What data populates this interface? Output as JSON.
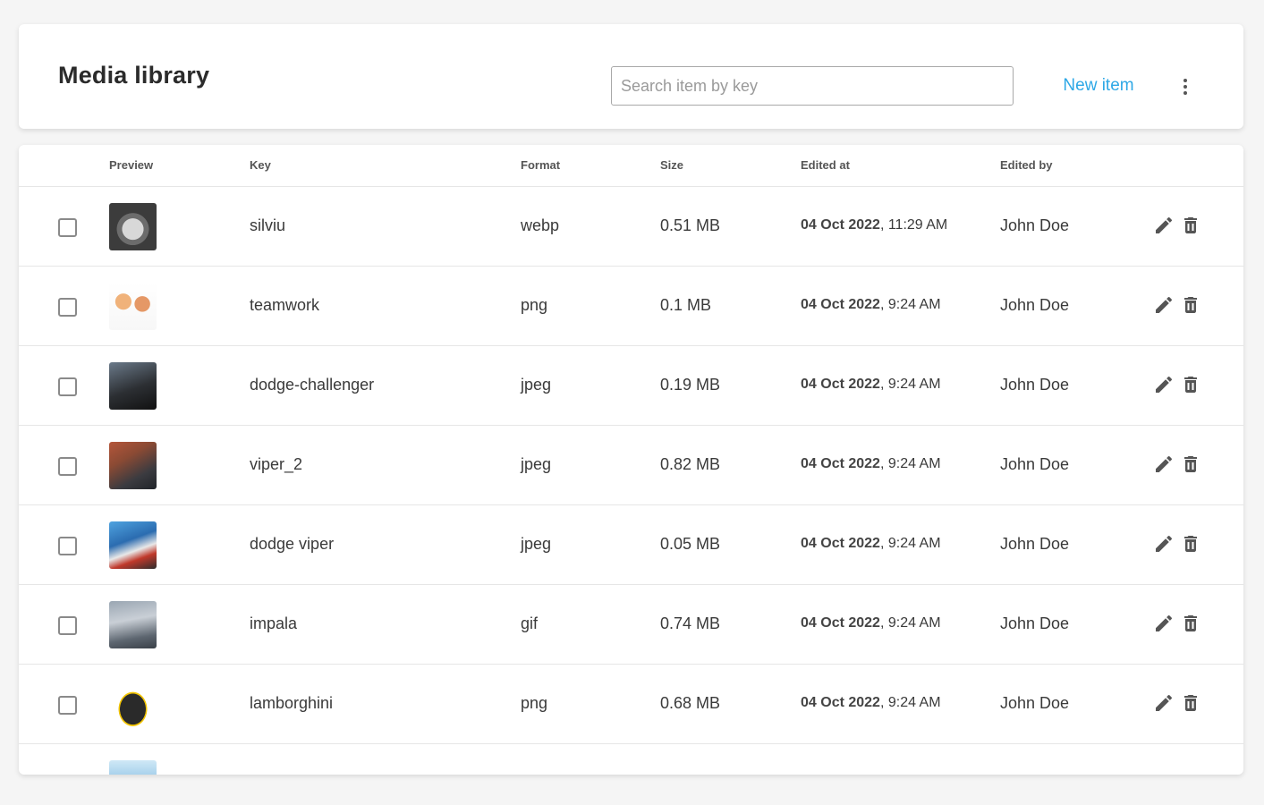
{
  "header": {
    "title": "Media library",
    "search_placeholder": "Search item by key",
    "new_item_label": "New item"
  },
  "table": {
    "columns": {
      "preview": "Preview",
      "key": "Key",
      "format": "Format",
      "size": "Size",
      "edited_at": "Edited at",
      "edited_by": "Edited by"
    },
    "rows": [
      {
        "key": "silviu",
        "format": "webp",
        "size": "0.51 MB",
        "date": "04 Oct 2022",
        "time": ", 11:29 AM",
        "edited_by": "John Doe"
      },
      {
        "key": "teamwork",
        "format": "png",
        "size": "0.1 MB",
        "date": "04 Oct 2022",
        "time": ", 9:24 AM",
        "edited_by": "John Doe"
      },
      {
        "key": "dodge-challenger",
        "format": "jpeg",
        "size": "0.19 MB",
        "date": "04 Oct 2022",
        "time": ", 9:24 AM",
        "edited_by": "John Doe"
      },
      {
        "key": "viper_2",
        "format": "jpeg",
        "size": "0.82 MB",
        "date": "04 Oct 2022",
        "time": ", 9:24 AM",
        "edited_by": "John Doe"
      },
      {
        "key": "dodge viper",
        "format": "jpeg",
        "size": "0.05 MB",
        "date": "04 Oct 2022",
        "time": ", 9:24 AM",
        "edited_by": "John Doe"
      },
      {
        "key": "impala",
        "format": "gif",
        "size": "0.74 MB",
        "date": "04 Oct 2022",
        "time": ", 9:24 AM",
        "edited_by": "John Doe"
      },
      {
        "key": "lamborghini",
        "format": "png",
        "size": "0.68 MB",
        "date": "04 Oct 2022",
        "time": ", 9:24 AM",
        "edited_by": "John Doe"
      }
    ]
  },
  "colors": {
    "accent": "#2ea8e6",
    "background": "#f5f5f5",
    "icon": "#555555"
  },
  "icons": {
    "edit": "pencil-icon",
    "delete": "trash-icon",
    "more": "more-vertical-icon"
  }
}
